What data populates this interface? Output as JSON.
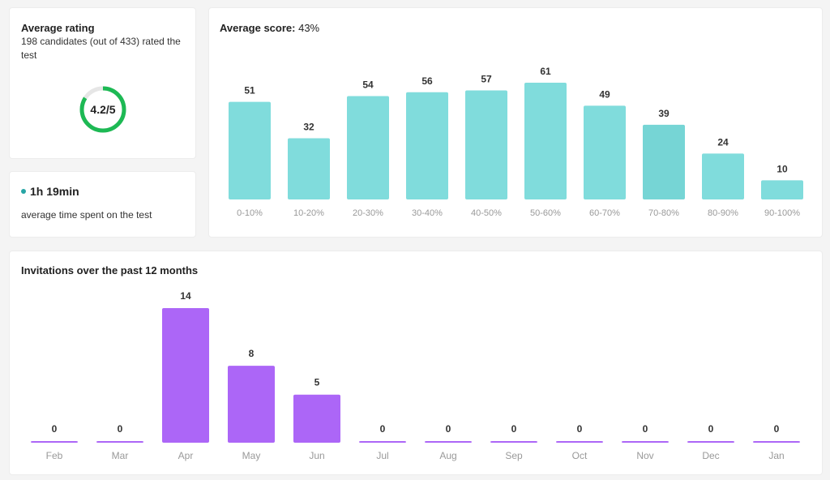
{
  "rating": {
    "title": "Average rating",
    "subtitle": "198 candidates (out of 433) rated the test",
    "value": "4.2/5",
    "score": 4.2,
    "max": 5,
    "color": "#1db954"
  },
  "time": {
    "value": "1h 19min",
    "label": "average time spent on the test",
    "dot_color": "#26a5a5"
  },
  "score_chart": {
    "title": "Average score:",
    "title_value": "43%",
    "chart_data": {
      "type": "bar",
      "categories": [
        "0-10%",
        "10-20%",
        "20-30%",
        "30-40%",
        "40-50%",
        "50-60%",
        "60-70%",
        "70-80%",
        "80-90%",
        "90-100%"
      ],
      "values": [
        51,
        32,
        54,
        56,
        57,
        61,
        49,
        39,
        24,
        10
      ],
      "highlighted": "70-80%",
      "color": "#80dcdc",
      "highlight_color": "#76d5d5"
    }
  },
  "invitations": {
    "title": "Invitations over the past 12 months",
    "chart_data": {
      "type": "bar",
      "categories": [
        "Feb",
        "Mar",
        "Apr",
        "May",
        "Jun",
        "Jul",
        "Aug",
        "Sep",
        "Oct",
        "Nov",
        "Dec",
        "Jan"
      ],
      "values": [
        0,
        0,
        14,
        8,
        5,
        0,
        0,
        0,
        0,
        0,
        0,
        0
      ],
      "color": "#ac66f7"
    }
  }
}
